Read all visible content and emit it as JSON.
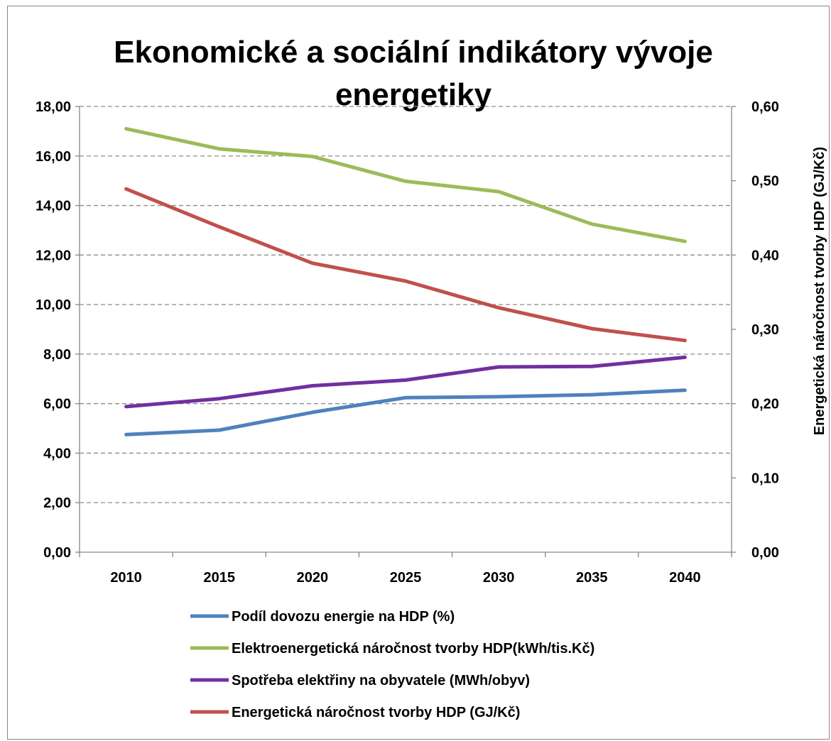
{
  "chart_data": {
    "type": "line",
    "title_lines": [
      "Ekonomické a sociální indikátory vývoje",
      "energetiky"
    ],
    "x": [
      "2010",
      "2015",
      "2020",
      "2025",
      "2030",
      "2035",
      "2040"
    ],
    "y_left": {
      "range": [
        0,
        18
      ],
      "ticks": [
        "0,00",
        "2,00",
        "4,00",
        "6,00",
        "8,00",
        "10,00",
        "12,00",
        "14,00",
        "16,00",
        "18,00"
      ]
    },
    "y_right": {
      "label": "Energetická náročnost tvorby HDP (GJ/Kč)",
      "range": [
        0,
        0.6
      ],
      "ticks": [
        "0,00",
        "0,10",
        "0,20",
        "0,30",
        "0,40",
        "0,50",
        "0,60"
      ]
    },
    "grid": true,
    "legend_position": "bottom",
    "series": [
      {
        "name": "Podíl dovozu energie na HDP (%)",
        "axis": "left",
        "color": "#4F81BD",
        "values": [
          4.75,
          4.93,
          5.65,
          6.24,
          6.28,
          6.36,
          6.54
        ]
      },
      {
        "name": "Elektroenergetická náročnost tvorby HDP(kWh/tis.Kč)",
        "axis": "left",
        "color": "#9BBB59",
        "values": [
          17.1,
          16.29,
          15.98,
          14.98,
          14.56,
          13.25,
          12.55
        ]
      },
      {
        "name": "Spotřeba elektřiny na obyvatele (MWh/obyv)",
        "axis": "left",
        "color": "#7030A0",
        "values": [
          5.88,
          6.2,
          6.72,
          6.95,
          7.48,
          7.5,
          7.87
        ]
      },
      {
        "name": "Energetická náročnost tvorby HDP (GJ/Kč)",
        "axis": "right",
        "color": "#C0504D",
        "values": [
          0.489,
          0.438,
          0.389,
          0.365,
          0.329,
          0.301,
          0.285
        ]
      }
    ]
  }
}
